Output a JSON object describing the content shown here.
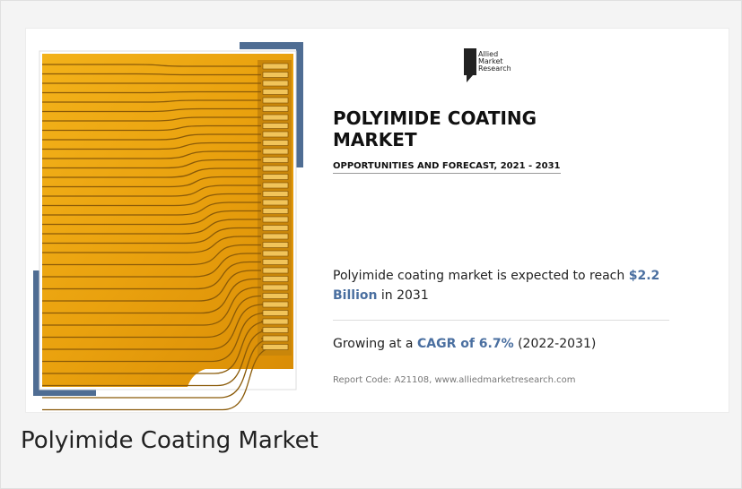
{
  "logo": {
    "lines": [
      "Allied",
      "Market",
      "Research"
    ]
  },
  "infographic": {
    "title_line1": "POLYIMIDE COATING",
    "title_line2": "MARKET",
    "subtitle": "OPPORTUNITIES AND FORECAST, 2021 - 2031",
    "stat1": {
      "before": "Polyimide coating market is expected to reach",
      "highlight": "$2.2 Billion",
      "after": "in 2031"
    },
    "stat2": {
      "before": "Growing at a",
      "highlight": "CAGR of 6.7%",
      "after": "(2022-2031)"
    },
    "report_code": "Report Code: A21108, www.alliedmarketresearch.com"
  },
  "caption": "Polyimide Coating Market"
}
